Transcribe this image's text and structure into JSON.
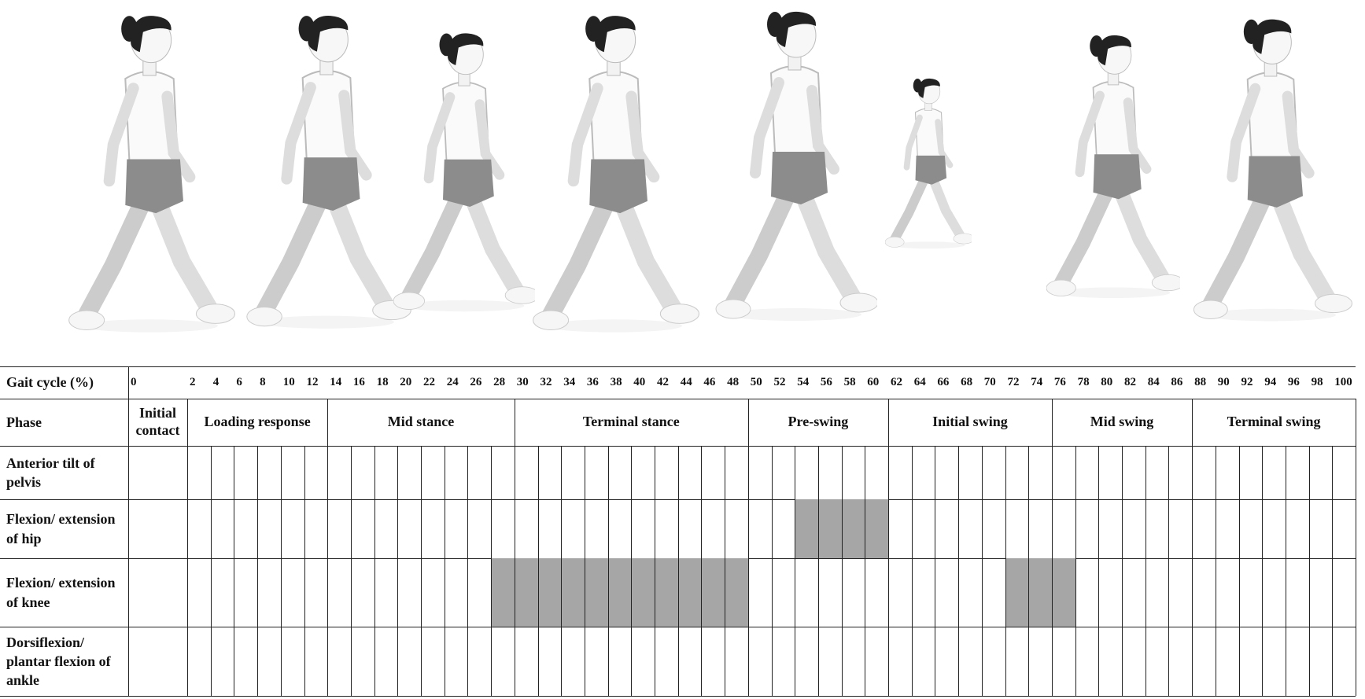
{
  "header_label": "Gait cycle (%)",
  "gait_cycle": [
    0,
    2,
    4,
    6,
    8,
    10,
    12,
    14,
    16,
    18,
    20,
    22,
    24,
    26,
    28,
    30,
    32,
    34,
    36,
    38,
    40,
    42,
    44,
    46,
    48,
    50,
    52,
    54,
    56,
    58,
    60,
    62,
    64,
    66,
    68,
    70,
    72,
    74,
    76,
    78,
    80,
    82,
    84,
    86,
    88,
    90,
    92,
    94,
    96,
    98,
    100
  ],
  "phase_label": "Phase",
  "phases": [
    {
      "name": "Initial contact",
      "from": 0,
      "to": 0
    },
    {
      "name": "Loading response",
      "from": 2,
      "to": 12
    },
    {
      "name": "Mid stance",
      "from": 14,
      "to": 28
    },
    {
      "name": "Terminal stance",
      "from": 30,
      "to": 48
    },
    {
      "name": "Pre-swing",
      "from": 50,
      "to": 60
    },
    {
      "name": "Initial swing",
      "from": 62,
      "to": 74
    },
    {
      "name": "Mid swing",
      "from": 76,
      "to": 86
    },
    {
      "name": "Terminal swing",
      "from": 88,
      "to": 100
    }
  ],
  "rows": [
    {
      "label": "Anterior tilt of pelvis",
      "shaded": []
    },
    {
      "label": "Flexion/ extension of hip",
      "shaded": [
        [
          54,
          60
        ]
      ]
    },
    {
      "label": "Flexion/ extension of knee",
      "shaded": [
        [
          28,
          48
        ],
        [
          72,
          76
        ]
      ]
    },
    {
      "label": "Dorsiflexion/ plantar flexion of ankle",
      "shaded": []
    }
  ]
}
